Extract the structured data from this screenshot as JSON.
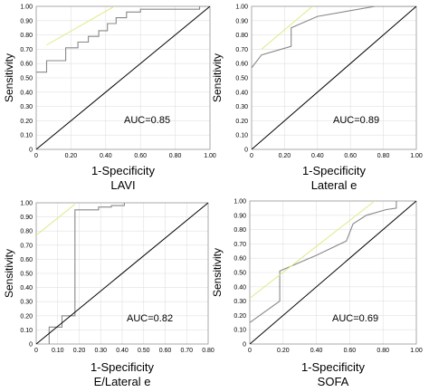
{
  "chart_data": [
    {
      "type": "line",
      "title": "",
      "xlabel": "1-Specificity",
      "sublabel": "LAVI",
      "ylabel": "Sensitivity",
      "annotation": "AUC=0.85",
      "xlim": [
        0,
        1
      ],
      "ylim": [
        0,
        1
      ],
      "x_ticks": [
        "0",
        "0.20",
        "0.40",
        "0.60",
        "0.80",
        "1.00"
      ],
      "y_ticks": [
        "0",
        "0.10",
        "0.20",
        "0.30",
        "0.40",
        "0.50",
        "0.60",
        "0.70",
        "0.80",
        "0.90",
        "1.00"
      ],
      "grid": true,
      "series": [
        {
          "values": [
            [
              0,
              0.54
            ],
            [
              0.06,
              0.54
            ],
            [
              0.06,
              0.62
            ],
            [
              0.17,
              0.62
            ],
            [
              0.17,
              0.71
            ],
            [
              0.24,
              0.71
            ],
            [
              0.24,
              0.75
            ],
            [
              0.3,
              0.75
            ],
            [
              0.3,
              0.79
            ],
            [
              0.36,
              0.79
            ],
            [
              0.36,
              0.83
            ],
            [
              0.41,
              0.83
            ],
            [
              0.41,
              0.88
            ],
            [
              0.46,
              0.88
            ],
            [
              0.46,
              0.92
            ],
            [
              0.52,
              0.92
            ],
            [
              0.52,
              0.96
            ],
            [
              0.6,
              0.96
            ],
            [
              0.6,
              0.98
            ],
            [
              0.94,
              0.98
            ],
            [
              0.94,
              1.0
            ],
            [
              1,
              1
            ]
          ]
        },
        {
          "values": [
            [
              0,
              0
            ],
            [
              1,
              1
            ]
          ]
        },
        {
          "values": [
            [
              0.06,
              0.73
            ],
            [
              0.45,
              1.0
            ]
          ]
        }
      ]
    },
    {
      "type": "line",
      "title": "",
      "xlabel": "1-Specificity",
      "sublabel": "Lateral e",
      "ylabel": "Sensitivity",
      "annotation": "AUC=0.89",
      "xlim": [
        0,
        1
      ],
      "ylim": [
        0,
        1
      ],
      "x_ticks": [
        "0",
        "0.20",
        "0.40",
        "0.60",
        "0.80",
        "1.00"
      ],
      "y_ticks": [
        "0",
        "0.10",
        "0.20",
        "0.30",
        "0.40",
        "0.50",
        "0.60",
        "0.70",
        "0.80",
        "0.90",
        "1.00"
      ],
      "grid": true,
      "series": [
        {
          "values": [
            [
              0,
              0.57
            ],
            [
              0.06,
              0.66
            ],
            [
              0.24,
              0.72
            ],
            [
              0.24,
              0.85
            ],
            [
              0.4,
              0.93
            ],
            [
              0.75,
              1.0
            ],
            [
              1,
              1
            ]
          ]
        },
        {
          "values": [
            [
              0,
              0
            ],
            [
              1,
              1
            ]
          ]
        },
        {
          "values": [
            [
              0.06,
              0.7
            ],
            [
              0.37,
              1.0
            ]
          ]
        }
      ]
    },
    {
      "type": "line",
      "title": "",
      "xlabel": "1-Specificity",
      "sublabel": "E/Lateral e",
      "ylabel": "Sensitivity",
      "annotation": "AUC=0.82",
      "xlim": [
        0,
        0.8
      ],
      "ylim": [
        0,
        1
      ],
      "x_ticks": [
        "0",
        "0.10",
        "0.20",
        "0.30",
        "0.40",
        "0.50",
        "0.60",
        "0.70",
        "0.80"
      ],
      "y_ticks": [
        "0",
        "0.10",
        "0.20",
        "0.30",
        "0.40",
        "0.50",
        "0.60",
        "0.70",
        "0.80",
        "0.90",
        "1.00"
      ],
      "grid": true,
      "series": [
        {
          "values": [
            [
              0.06,
              0
            ],
            [
              0.06,
              0.12
            ],
            [
              0.12,
              0.12
            ],
            [
              0.12,
              0.2
            ],
            [
              0.18,
              0.2
            ],
            [
              0.18,
              0.95
            ],
            [
              0.29,
              0.95
            ],
            [
              0.29,
              0.97
            ],
            [
              0.35,
              0.97
            ],
            [
              0.35,
              0.98
            ],
            [
              0.41,
              0.98
            ],
            [
              0.41,
              1.0
            ]
          ]
        },
        {
          "values": [
            [
              0,
              0
            ],
            [
              0.8,
              1
            ]
          ]
        },
        {
          "values": [
            [
              0,
              0.77
            ],
            [
              0.18,
              0.99
            ]
          ]
        }
      ]
    },
    {
      "type": "line",
      "title": "",
      "xlabel": "1-Specificity",
      "sublabel": "SOFA",
      "ylabel": "Sensitivity",
      "annotation": "AUC=0.69",
      "xlim": [
        0,
        1
      ],
      "ylim": [
        0,
        1
      ],
      "x_ticks": [
        "0",
        "0.20",
        "0.40",
        "0.60",
        "0.80",
        "1.00"
      ],
      "y_ticks": [
        "0",
        "0.10",
        "0.20",
        "0.30",
        "0.40",
        "0.50",
        "0.60",
        "0.70",
        "0.80",
        "0.90",
        "1.00"
      ],
      "grid": true,
      "series": [
        {
          "values": [
            [
              0,
              0.15
            ],
            [
              0.18,
              0.3
            ],
            [
              0.18,
              0.51
            ],
            [
              0.4,
              0.62
            ],
            [
              0.58,
              0.72
            ],
            [
              0.62,
              0.84
            ],
            [
              0.7,
              0.9
            ],
            [
              0.82,
              0.94
            ],
            [
              0.88,
              0.95
            ],
            [
              0.88,
              1.0
            ]
          ]
        },
        {
          "values": [
            [
              0,
              0
            ],
            [
              1,
              1
            ]
          ]
        },
        {
          "values": [
            [
              0,
              0.32
            ],
            [
              0.75,
              1.0
            ]
          ]
        }
      ]
    }
  ],
  "colors": {
    "roc_curve": "#888888",
    "reference_line": "#000000",
    "highlight_line": "#e3eb8f",
    "grid": "#e0e0e0",
    "frame": "#999999"
  }
}
